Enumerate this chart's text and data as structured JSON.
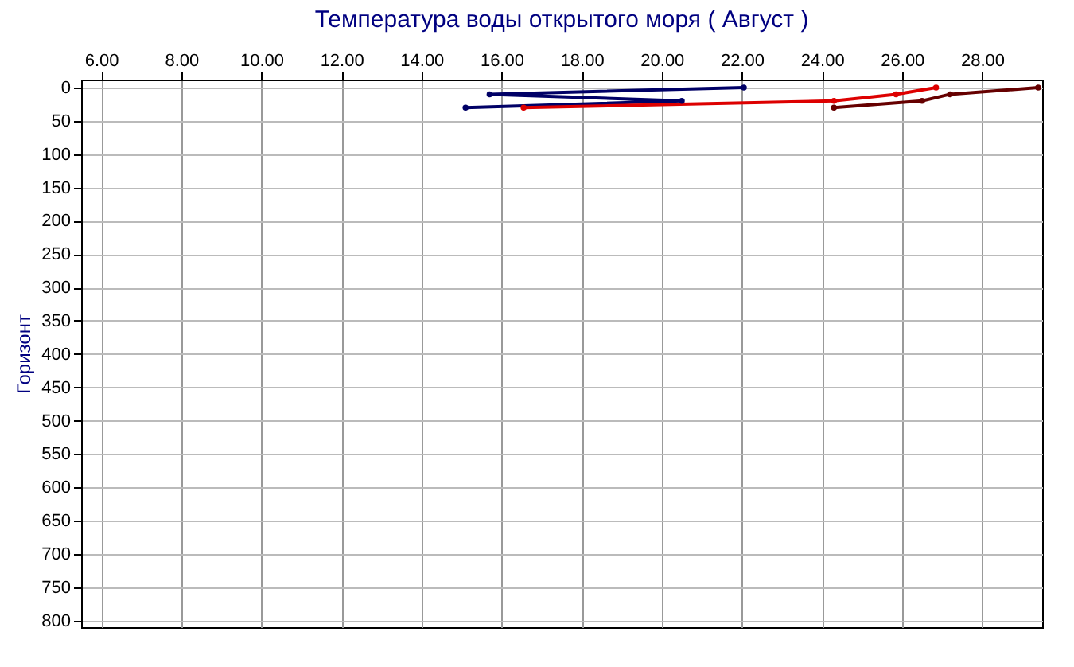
{
  "chart_data": {
    "type": "line",
    "title": "Температура воды открытого моря     ( Август )",
    "ylabel": "Горизонт",
    "xlim": [
      5.5,
      29.5
    ],
    "ylim": [
      810,
      -12
    ],
    "xticks": [
      {
        "value": 6,
        "label": "6.00"
      },
      {
        "value": 8,
        "label": "8.00"
      },
      {
        "value": 10,
        "label": "10.00"
      },
      {
        "value": 12,
        "label": "12.00"
      },
      {
        "value": 14,
        "label": "14.00"
      },
      {
        "value": 16,
        "label": "16.00"
      },
      {
        "value": 18,
        "label": "18.00"
      },
      {
        "value": 20,
        "label": "20.00"
      },
      {
        "value": 22,
        "label": "22.00"
      },
      {
        "value": 24,
        "label": "24.00"
      },
      {
        "value": 26,
        "label": "26.00"
      },
      {
        "value": 28,
        "label": "28.00"
      }
    ],
    "yticks": [
      0,
      50,
      100,
      150,
      200,
      250,
      300,
      350,
      400,
      450,
      500,
      550,
      600,
      650,
      700,
      750,
      800
    ],
    "grid": true,
    "marker": "circle",
    "line_style": "solid",
    "series": [
      {
        "color": "#000066",
        "x": [
          22.05,
          15.7,
          20.5,
          15.1
        ],
        "values": [
          0,
          10,
          20,
          30
        ]
      },
      {
        "color": "#dd0000",
        "x": [
          26.85,
          25.85,
          24.3,
          16.55
        ],
        "values": [
          0,
          10,
          20,
          30
        ]
      },
      {
        "color": "#660000",
        "x": [
          29.4,
          27.2,
          26.5,
          24.3
        ],
        "values": [
          0,
          10,
          20,
          30
        ]
      }
    ]
  }
}
